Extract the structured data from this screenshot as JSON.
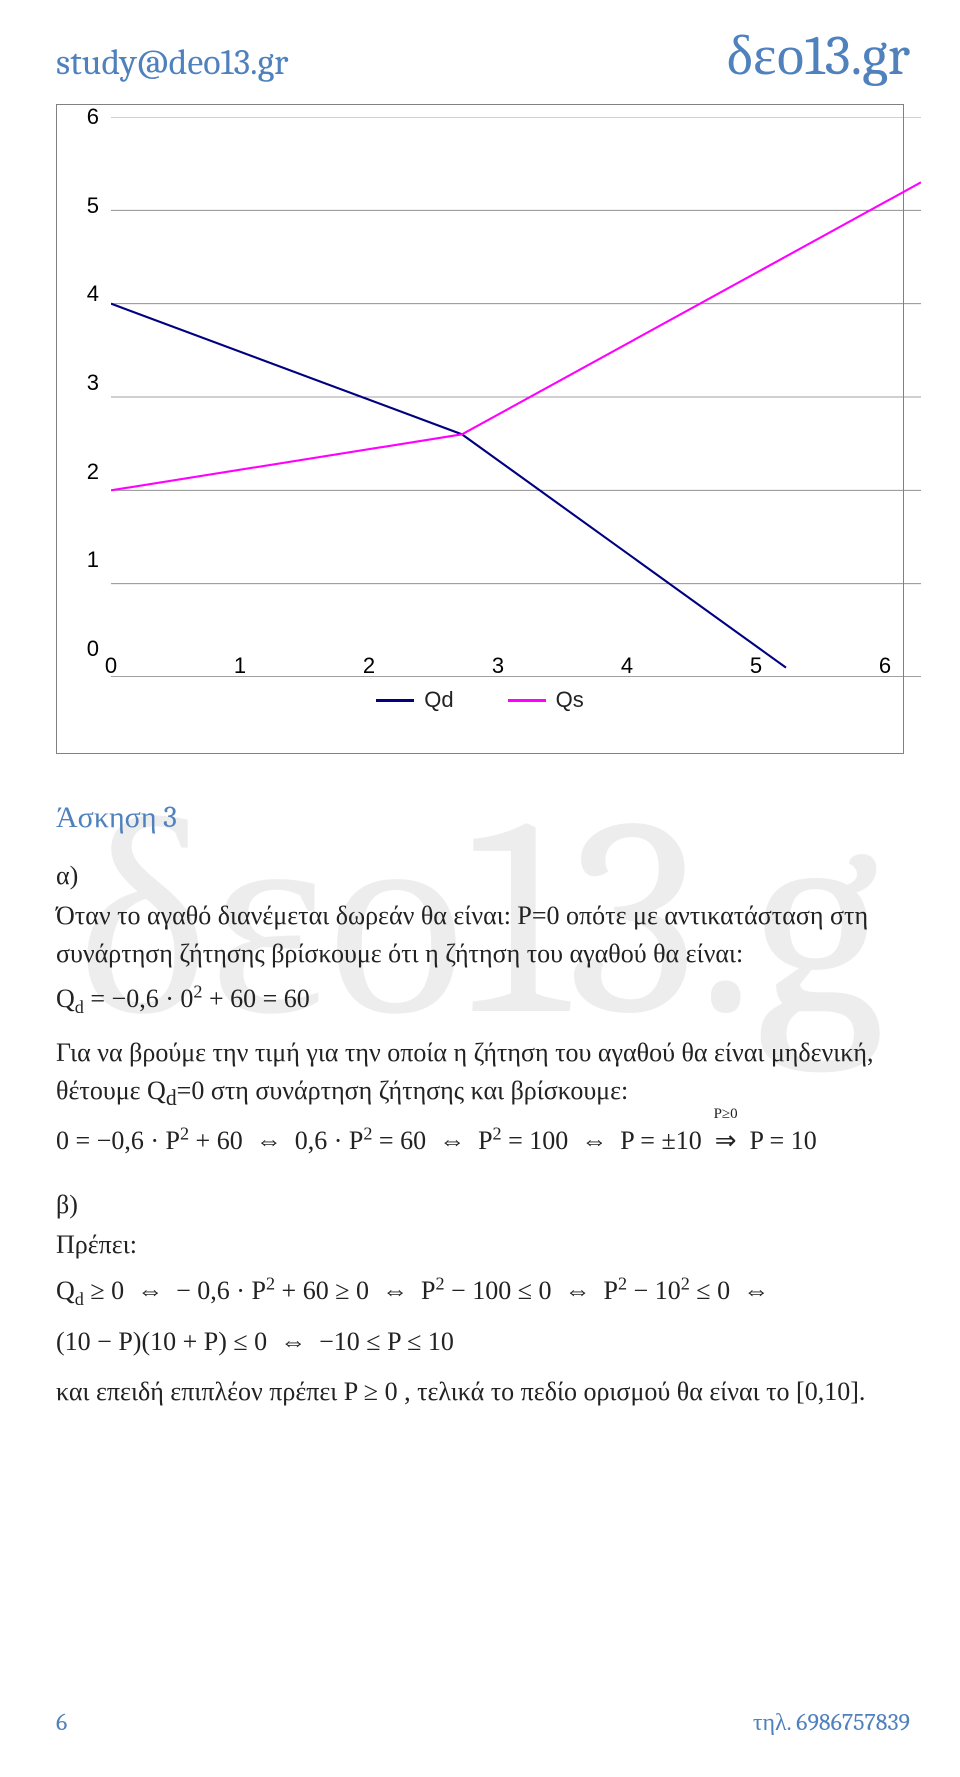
{
  "header": {
    "left": "study@deo13.gr",
    "right": "δεο13.gr"
  },
  "watermark": "δεο13.g",
  "chart": {
    "type": "line",
    "background_color": "#ffffff",
    "border_color": "#808080",
    "gridline_color": "#808080",
    "tick_fontsize": 22,
    "legend_fontsize": 22,
    "x_axis": {
      "min": 0,
      "max": 6,
      "ticks": [
        0,
        1,
        2,
        3,
        4,
        5,
        6
      ]
    },
    "y_axis": {
      "min": 0,
      "max": 6,
      "ticks": [
        0,
        1,
        2,
        3,
        4,
        5,
        6
      ]
    },
    "series": [
      {
        "name": "Qd",
        "color": "#000080",
        "line_width": 2,
        "points": [
          [
            0,
            4
          ],
          [
            2.6,
            2.6
          ],
          [
            5,
            0.1
          ]
        ]
      },
      {
        "name": "Qs",
        "color": "#ff00ff",
        "line_width": 2,
        "points": [
          [
            0,
            2
          ],
          [
            2.6,
            2.6
          ],
          [
            6,
            5.3
          ]
        ]
      }
    ],
    "legend": [
      {
        "label": "Qd",
        "color": "#000080"
      },
      {
        "label": "Qs",
        "color": "#ff00ff"
      }
    ]
  },
  "section_title": "Άσκηση 3",
  "part_a": {
    "label": "α)",
    "text1": "Όταν το αγαθό διανέμεται δωρεάν θα είναι: P=0 οπότε με αντικατάσταση στη συνάρτηση ζήτησης βρίσκουμε ότι η ζήτηση του αγαθού θα είναι:",
    "eq1_html": "Q<sub>d</sub> = −0,6 · 0<sup>2</sup> + 60 = 60",
    "text2": "Για να βρούμε την τιμή για την οποία η ζήτηση του αγαθού θα είναι μηδενική, θέτουμε Q<sub>d</sub>=0 στη συνάρτηση ζήτησης και βρίσκουμε:",
    "eq2_html": "0 = −0,6 · P<sup>2</sup> + 60&nbsp;&nbsp;⇔&nbsp;&nbsp;0,6 · P<sup>2</sup> = 60&nbsp;&nbsp;⇔&nbsp;&nbsp;P<sup>2</sup> = 100&nbsp;&nbsp;⇔&nbsp;&nbsp;P = ±10&nbsp;&nbsp;<span class=\"over-arrow\"><span class=\"sup-note\">P≥0</span>⇒</span>&nbsp;&nbsp;P = 10"
  },
  "part_b": {
    "label": "β)",
    "text1": "Πρέπει:",
    "eq1_html": "Q<sub>d</sub> ≥ 0&nbsp;&nbsp;⇔&nbsp;&nbsp;− 0,6 · P<sup>2</sup> + 60 ≥ 0&nbsp;&nbsp;⇔&nbsp;&nbsp;P<sup>2</sup> − 100 ≤ 0&nbsp;&nbsp;⇔&nbsp;&nbsp;P<sup>2</sup> − 10<sup>2</sup> ≤ 0&nbsp;&nbsp;⇔",
    "eq2_html": "(10 − P)(10 + P) ≤ 0&nbsp;&nbsp;⇔&nbsp;&nbsp;−10 ≤ P ≤ 10",
    "text2_html": "και επειδή επιπλέον πρέπει P ≥ 0 , τελικά το πεδίο ορισμού θα είναι το [0,10]."
  },
  "footer": {
    "page_number": "6",
    "phone": "τηλ. 6986757839"
  }
}
